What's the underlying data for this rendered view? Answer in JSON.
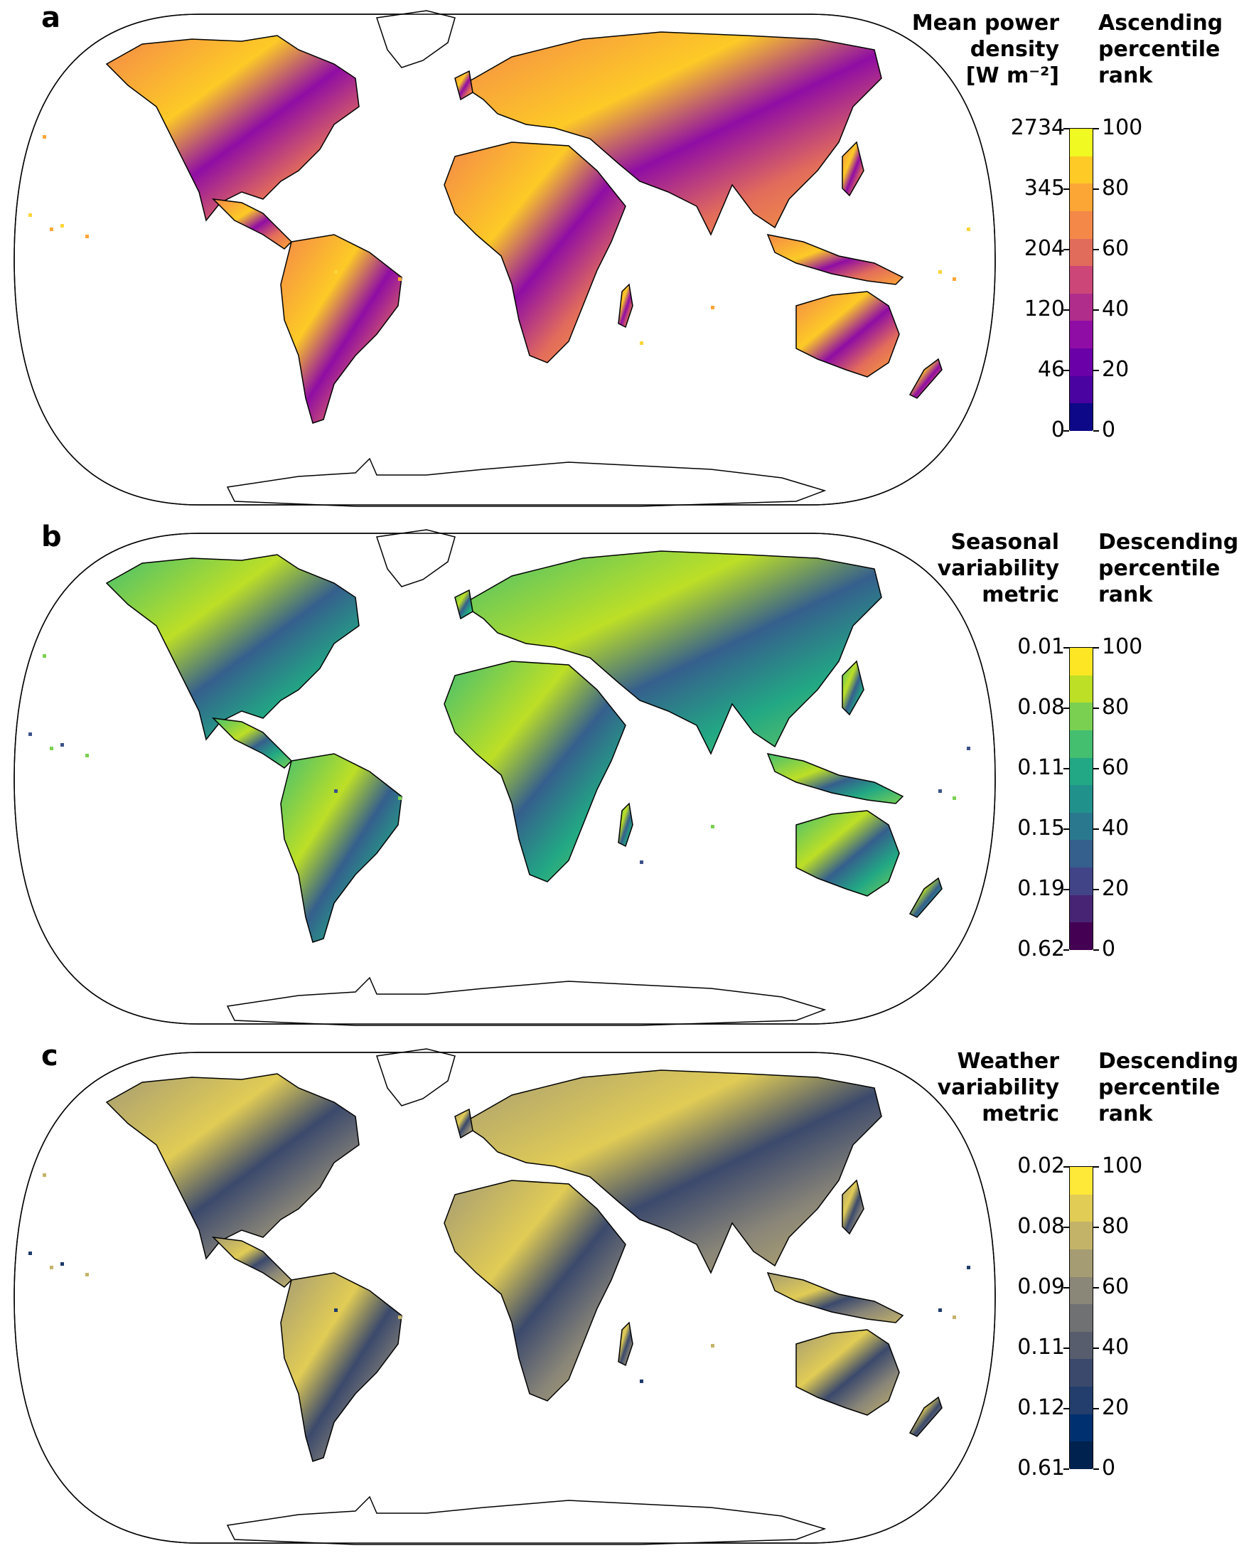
{
  "panels": [
    {
      "letter": "a",
      "left_title": "Mean power\ndensity\n[W m⁻²]",
      "right_title": "Ascending\npercentile\nrank",
      "left_ticks": [
        "2734",
        "345",
        "204",
        "120",
        "46",
        "0"
      ],
      "right_ticks": [
        "100",
        "80",
        "60",
        "40",
        "20",
        "0"
      ],
      "colors": [
        "#f0f921",
        "#fdca26",
        "#fca636",
        "#f48849",
        "#e26c5b",
        "#cc4778",
        "#b02d8c",
        "#8f0da4",
        "#6a00a8",
        "#4a02a0",
        "#0d0887"
      ],
      "land": "#f0a640",
      "ocean_island": "#fbd53a"
    },
    {
      "letter": "b",
      "left_title": "Seasonal\nvariability\nmetric",
      "right_title": "Descending\npercentile\nrank",
      "left_ticks": [
        "0.01",
        "0.08",
        "0.11",
        "0.15",
        "0.19",
        "0.62"
      ],
      "right_ticks": [
        "100",
        "80",
        "60",
        "40",
        "20",
        "0"
      ],
      "colors": [
        "#fde725",
        "#bddf26",
        "#7ad151",
        "#44bf70",
        "#22a884",
        "#21918c",
        "#2a788e",
        "#355f8d",
        "#414487",
        "#482475",
        "#440154"
      ],
      "land": "#2a9d8f",
      "ocean_island": "#3b528b"
    },
    {
      "letter": "c",
      "left_title": "Weather\nvariability\nmetric",
      "right_title": "Descending\npercentile\nrank",
      "left_ticks": [
        "0.02",
        "0.08",
        "0.09",
        "0.11",
        "0.12",
        "0.61"
      ],
      "right_ticks": [
        "100",
        "80",
        "60",
        "40",
        "20",
        "0"
      ],
      "colors": [
        "#fee838",
        "#e1cc55",
        "#c3b369",
        "#a59c74",
        "#8a8678",
        "#707173",
        "#575d6d",
        "#3b496c",
        "#233e6c",
        "#00306f",
        "#00224e"
      ],
      "land": "#cbb65e",
      "ocean_island": "#1f3b6b"
    }
  ]
}
